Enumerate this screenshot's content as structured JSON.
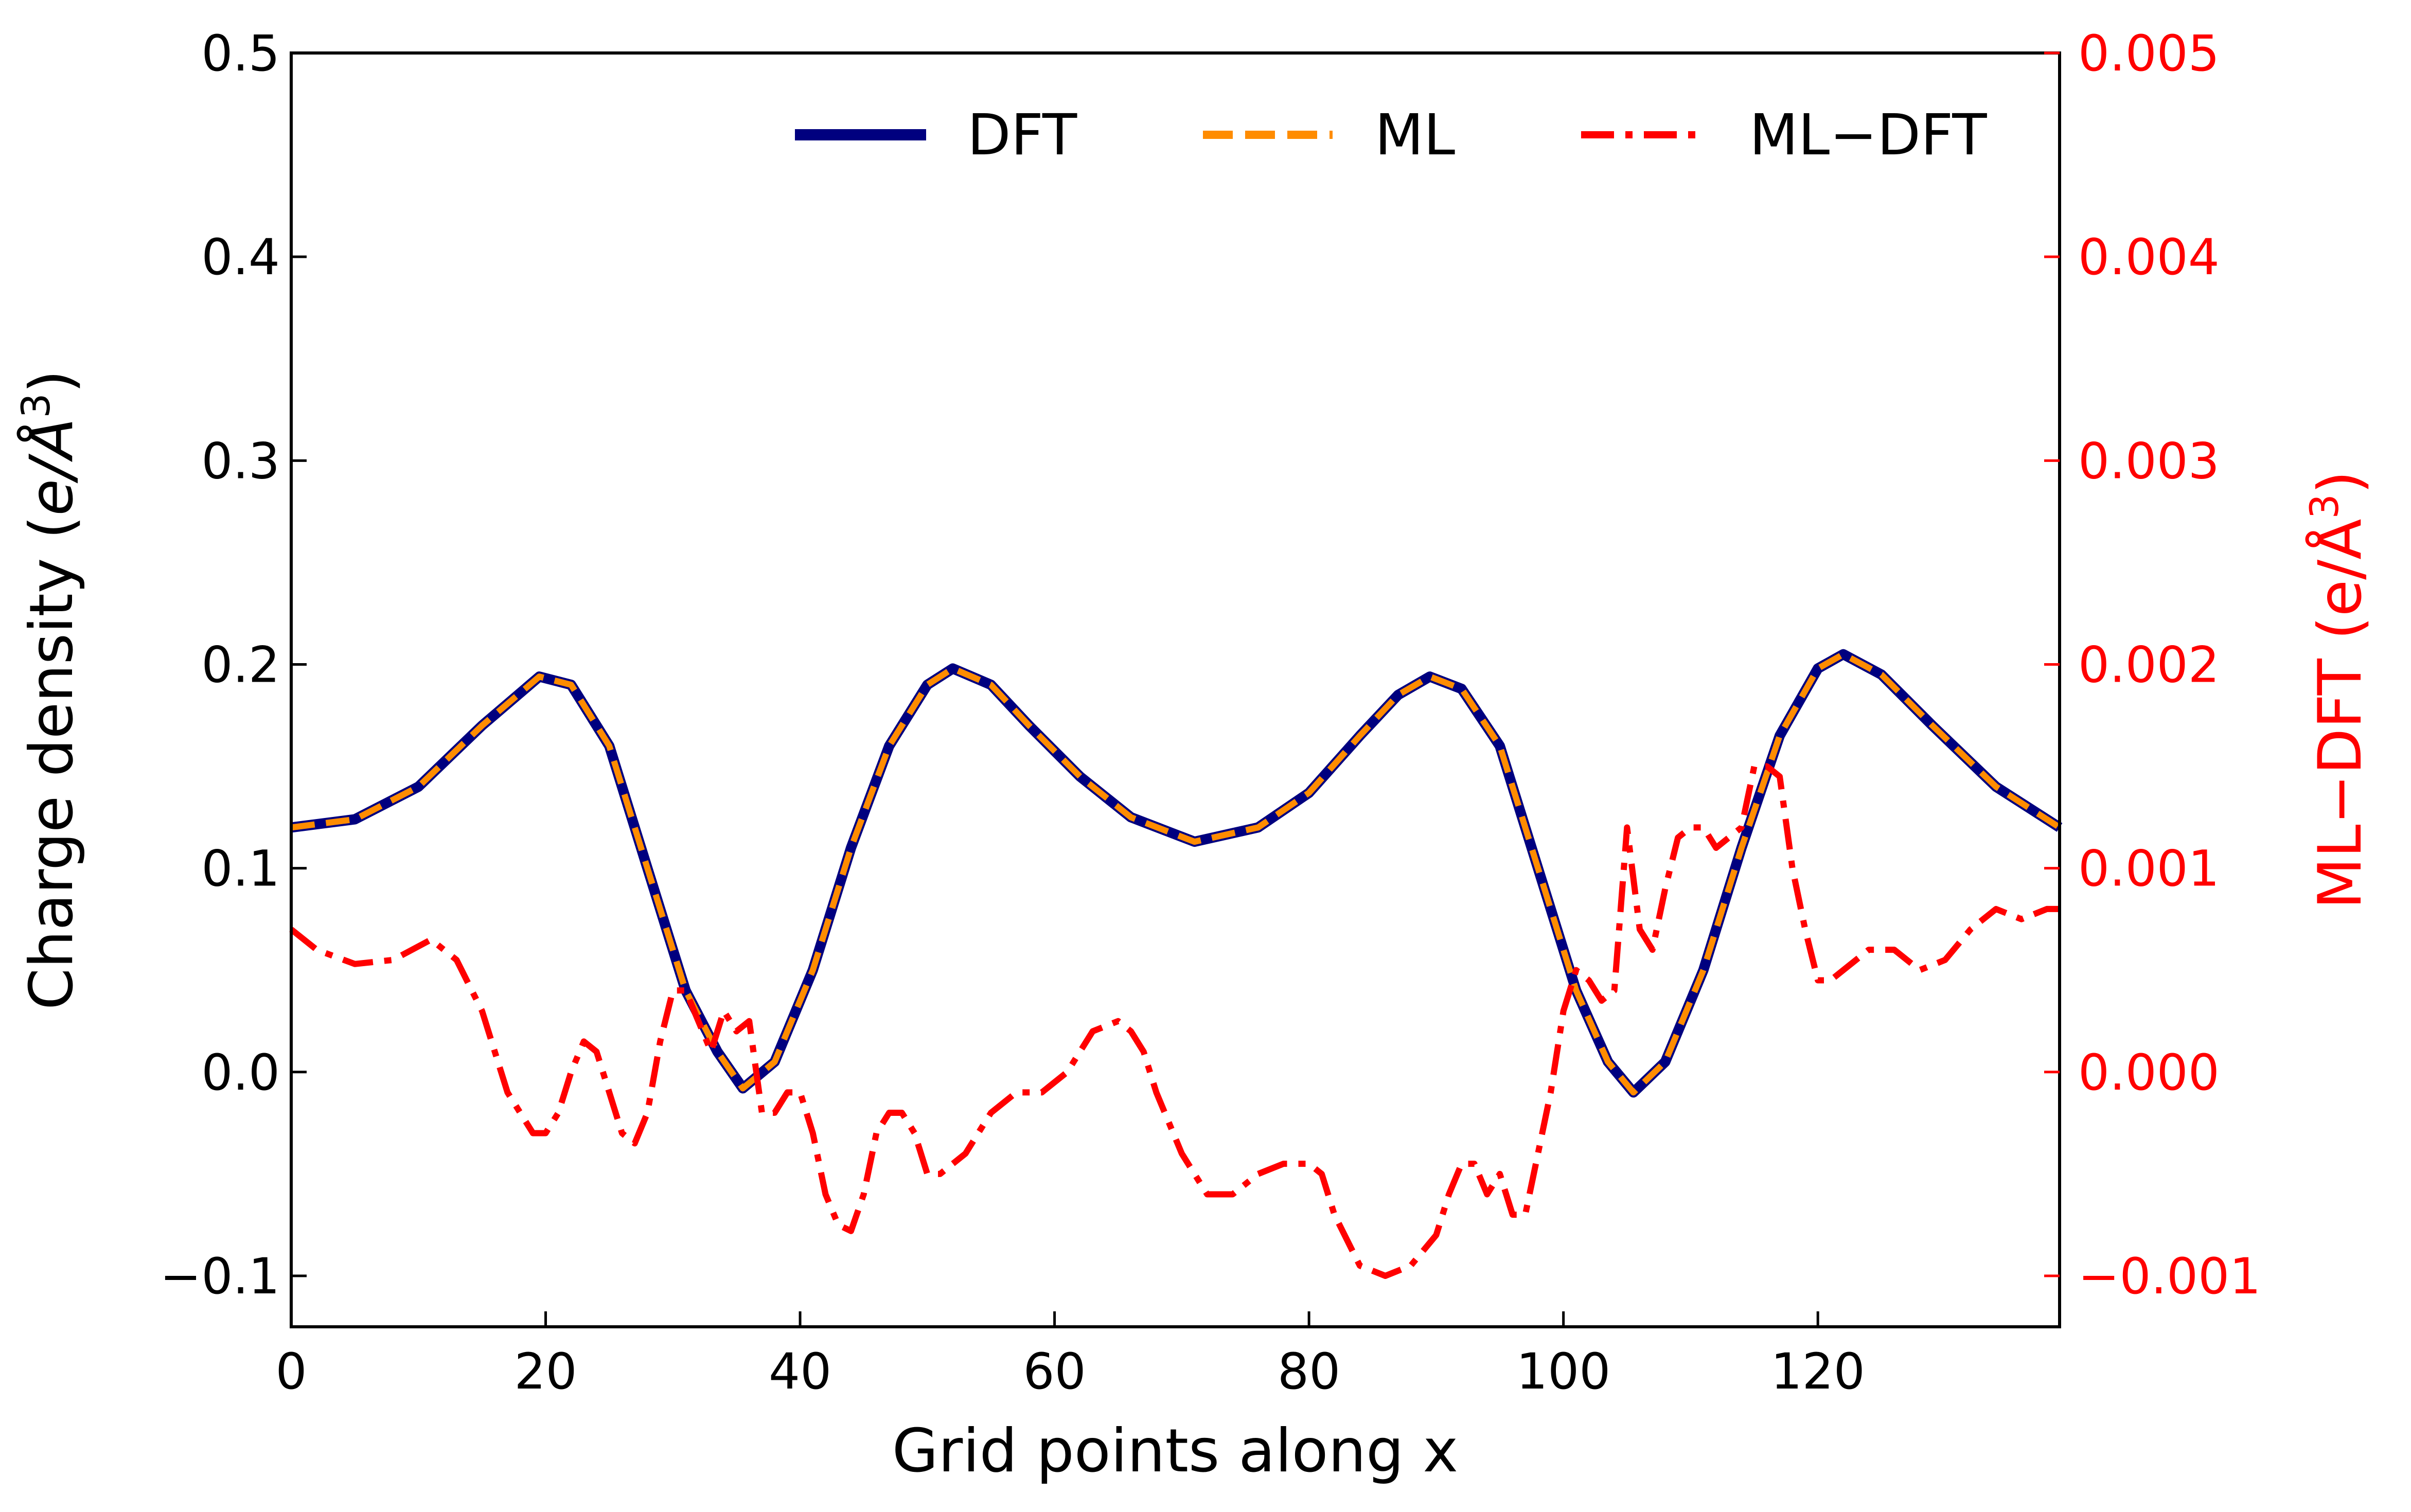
{
  "chart_data": {
    "type": "line",
    "xlabel": "Grid points along x",
    "ylabel_left_main": "Charge density (",
    "ylabel_left_unit": "e/Å",
    "ylabel_left_sup": "3",
    "ylabel_left_close": ")",
    "ylabel_right_main": "ML−DFT (e/Å",
    "ylabel_right_sup": "3",
    "ylabel_right_close": ")",
    "xlim": [
      0,
      139
    ],
    "ylim_left": [
      -0.125,
      0.5
    ],
    "ylim_right": [
      -0.00125,
      0.005
    ],
    "x_ticks": [
      "0",
      "20",
      "40",
      "60",
      "80",
      "100",
      "120"
    ],
    "x_tick_values": [
      0,
      20,
      40,
      60,
      80,
      100,
      120
    ],
    "y_left_ticks": [
      "−0.1",
      "0.0",
      "0.1",
      "0.2",
      "0.3",
      "0.4",
      "0.5"
    ],
    "y_left_tick_values": [
      -0.1,
      0.0,
      0.1,
      0.2,
      0.3,
      0.4,
      0.5
    ],
    "y_right_ticks": [
      "−0.001",
      "0.000",
      "0.001",
      "0.002",
      "0.003",
      "0.004",
      "0.005"
    ],
    "y_right_tick_values": [
      -0.001,
      0.0,
      0.001,
      0.002,
      0.003,
      0.004,
      0.005
    ],
    "legend_position": "top-right",
    "grid": false,
    "colors": {
      "dft": "#00007f",
      "ml": "#ff8c00",
      "diff": "#ff0000",
      "right_axis": "#ff0000",
      "text": "#000000"
    },
    "series": [
      {
        "name": "DFT",
        "axis": "left",
        "style": "solid",
        "x": [
          0,
          5,
          10,
          15,
          19.5,
          22,
          25,
          28,
          31,
          33.5,
          35.5,
          38,
          41,
          44,
          47,
          50,
          52,
          55,
          58,
          62,
          66,
          71,
          76,
          80,
          84,
          87,
          89.5,
          92,
          95,
          98,
          101,
          103.5,
          105.5,
          108,
          111,
          114,
          117,
          120,
          122,
          125,
          129,
          134,
          139
        ],
        "values": [
          0.12,
          0.124,
          0.14,
          0.17,
          0.194,
          0.19,
          0.16,
          0.1,
          0.04,
          0.01,
          -0.008,
          0.005,
          0.05,
          0.11,
          0.16,
          0.19,
          0.198,
          0.19,
          0.17,
          0.145,
          0.125,
          0.113,
          0.12,
          0.137,
          0.165,
          0.185,
          0.194,
          0.188,
          0.16,
          0.1,
          0.04,
          0.005,
          -0.01,
          0.005,
          0.05,
          0.11,
          0.165,
          0.198,
          0.205,
          0.195,
          0.17,
          0.14,
          0.12
        ]
      },
      {
        "name": "ML",
        "axis": "left",
        "style": "dashed",
        "x": [
          0,
          5,
          10,
          15,
          19.5,
          22,
          25,
          28,
          31,
          33.5,
          35.5,
          38,
          41,
          44,
          47,
          50,
          52,
          55,
          58,
          62,
          66,
          71,
          76,
          80,
          84,
          87,
          89.5,
          92,
          95,
          98,
          101,
          103.5,
          105.5,
          108,
          111,
          114,
          117,
          120,
          122,
          125,
          129,
          134,
          139
        ],
        "values": [
          0.12,
          0.124,
          0.14,
          0.17,
          0.194,
          0.19,
          0.16,
          0.1,
          0.04,
          0.01,
          -0.008,
          0.005,
          0.05,
          0.11,
          0.16,
          0.19,
          0.198,
          0.19,
          0.17,
          0.145,
          0.125,
          0.113,
          0.12,
          0.137,
          0.165,
          0.185,
          0.194,
          0.188,
          0.16,
          0.1,
          0.04,
          0.005,
          -0.01,
          0.005,
          0.05,
          0.11,
          0.165,
          0.198,
          0.205,
          0.195,
          0.17,
          0.14,
          0.12
        ]
      },
      {
        "name": "ML−DFT",
        "axis": "right",
        "style": "dashdot",
        "x": [
          0,
          2,
          5,
          8,
          11,
          13,
          15,
          17,
          19,
          20,
          21,
          22,
          23,
          24,
          25,
          26,
          27,
          28,
          29,
          30,
          31,
          32,
          33,
          34,
          35,
          36,
          37,
          38,
          39,
          40,
          41,
          42,
          43,
          44,
          45,
          46,
          47,
          48,
          49,
          50,
          51,
          52,
          53,
          55,
          57,
          59,
          61,
          63,
          65,
          66,
          67,
          68,
          70,
          72,
          74,
          76,
          78,
          80,
          81,
          82,
          84,
          86,
          88,
          90,
          91,
          92,
          93,
          94,
          95,
          96,
          97,
          98,
          99,
          100,
          101,
          102,
          103,
          104,
          105,
          106,
          107,
          108,
          109,
          110,
          111,
          112,
          113,
          114,
          115,
          116,
          117,
          118,
          119,
          120,
          121,
          122,
          124,
          126,
          128,
          130,
          132,
          134,
          136,
          138,
          139
        ],
        "values": [
          0.0007,
          0.0006,
          0.00053,
          0.00055,
          0.00065,
          0.00055,
          0.0003,
          -0.0001,
          -0.0003,
          -0.0003,
          -0.0002,
          0.0,
          0.00015,
          0.0001,
          -0.0001,
          -0.0003,
          -0.00035,
          -0.0002,
          0.00015,
          0.0004,
          0.0004,
          0.00025,
          0.0001,
          0.0003,
          0.0002,
          0.00025,
          -0.0002,
          -0.0002,
          -0.0001,
          -0.0001,
          -0.0003,
          -0.0006,
          -0.00075,
          -0.00078,
          -0.0006,
          -0.0003,
          -0.0002,
          -0.0002,
          -0.0003,
          -0.0005,
          -0.0005,
          -0.00045,
          -0.0004,
          -0.0002,
          -0.0001,
          -0.0001,
          0.0,
          0.0002,
          0.00025,
          0.0002,
          0.0001,
          -0.0001,
          -0.0004,
          -0.0006,
          -0.0006,
          -0.0005,
          -0.00045,
          -0.00045,
          -0.0005,
          -0.0007,
          -0.00095,
          -0.001,
          -0.00095,
          -0.0008,
          -0.0006,
          -0.00045,
          -0.00045,
          -0.0006,
          -0.0005,
          -0.0007,
          -0.0007,
          -0.0004,
          -0.0001,
          0.0003,
          0.0005,
          0.00045,
          0.00035,
          0.0004,
          0.0012,
          0.0007,
          0.0006,
          0.0009,
          0.00115,
          0.0012,
          0.0012,
          0.0011,
          0.00115,
          0.0012,
          0.0015,
          0.0015,
          0.00145,
          0.001,
          0.0007,
          0.00045,
          0.00045,
          0.0005,
          0.0006,
          0.0006,
          0.0005,
          0.00055,
          0.0007,
          0.0008,
          0.00075,
          0.0008,
          0.0008
        ]
      }
    ]
  }
}
